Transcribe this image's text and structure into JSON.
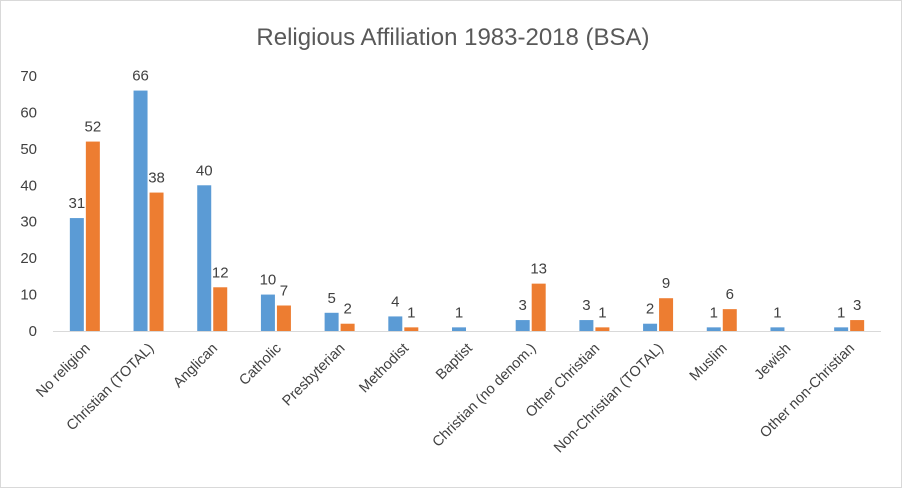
{
  "chart_data": {
    "type": "bar",
    "title": "Religious Affiliation 1983-2018 (BSA)",
    "xlabel": "",
    "ylabel": "",
    "ylim": [
      0,
      70
    ],
    "yticks": [
      0,
      10,
      20,
      30,
      40,
      50,
      60,
      70
    ],
    "grid": false,
    "legend": "none",
    "categories": [
      "No religion",
      "Christian (TOTAL)",
      "Anglican",
      "Catholic",
      "Presbyterian",
      "Methodist",
      "Baptist",
      "Christian (no denom.)",
      "Other Christian",
      "Non-Christian (TOTAL)",
      "Muslim",
      "Jewish",
      "Other non-Christian"
    ],
    "series": [
      {
        "color": "#5b9bd5",
        "values": [
          31,
          66,
          40,
          10,
          5,
          4,
          1,
          3,
          3,
          2,
          1,
          1,
          1
        ]
      },
      {
        "color": "#ed7d31",
        "values": [
          52,
          38,
          12,
          7,
          2,
          1,
          0,
          13,
          1,
          9,
          6,
          0,
          3
        ]
      }
    ]
  }
}
